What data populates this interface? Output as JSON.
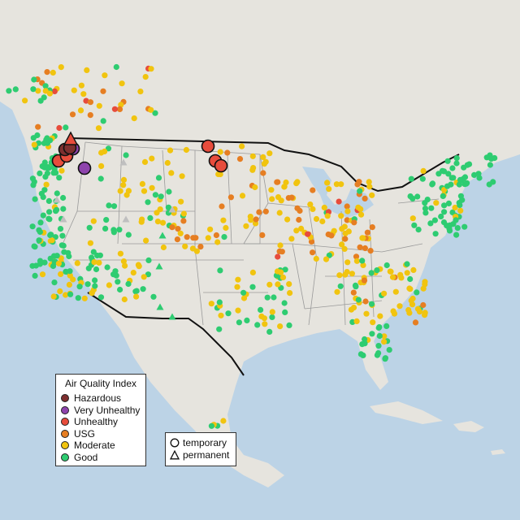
{
  "legend_aqi": {
    "title": "Air Quality Index",
    "categories": [
      {
        "label": "Hazardous",
        "color": "#7e2f2f"
      },
      {
        "label": "Very Unhealthy",
        "color": "#8e44ad"
      },
      {
        "label": "Unhealthy",
        "color": "#e74c3c"
      },
      {
        "label": "USG",
        "color": "#e67e22"
      },
      {
        "label": "Moderate",
        "color": "#f1c40f"
      },
      {
        "label": "Good",
        "color": "#2ecc71"
      }
    ]
  },
  "legend_type": {
    "items": [
      {
        "label": "temporary",
        "shape": "circle-icon"
      },
      {
        "label": "permanent",
        "shape": "triangle-icon"
      }
    ]
  },
  "colors": {
    "ocean": "#bcd3e6",
    "land": "#e6e4de",
    "state_border": "#9a9a9a",
    "country_border": "#111111",
    "no_data": "#bfbfbf"
  }
}
